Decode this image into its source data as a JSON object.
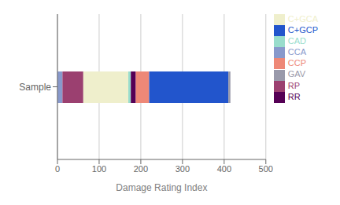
{
  "chart_data": {
    "type": "bar",
    "orientation": "horizontal",
    "stacked": true,
    "categories": [
      "Sample"
    ],
    "series": [
      {
        "name": "CCA",
        "color": "#8899CC",
        "values": [
          12
        ]
      },
      {
        "name": "RP",
        "color": "#9B4070",
        "values": [
          50
        ]
      },
      {
        "name": "C+GCA",
        "color": "#EFEFCC",
        "values": [
          108
        ]
      },
      {
        "name": "CAD",
        "color": "#99DDCC",
        "values": [
          6
        ]
      },
      {
        "name": "RR",
        "color": "#550055",
        "values": [
          12
        ]
      },
      {
        "name": "CCP",
        "color": "#EE8877",
        "values": [
          32
        ]
      },
      {
        "name": "C+GCP",
        "color": "#2255CC",
        "values": [
          190
        ]
      },
      {
        "name": "GAV",
        "color": "#9999AA",
        "values": [
          5
        ]
      }
    ],
    "xlabel": "Damage Rating Index",
    "xlim": [
      0,
      500
    ],
    "xticks": [
      0,
      100,
      200,
      300,
      400,
      500
    ],
    "grid": true,
    "legend": "right"
  }
}
